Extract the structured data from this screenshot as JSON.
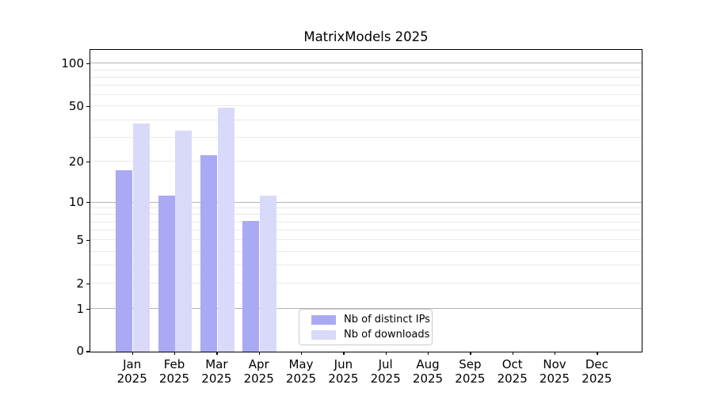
{
  "chart_data": {
    "type": "bar",
    "title": "MatrixModels 2025",
    "categories": [
      "Jan",
      "Feb",
      "Mar",
      "Apr",
      "May",
      "Jun",
      "Jul",
      "Aug",
      "Sep",
      "Oct",
      "Nov",
      "Dec"
    ],
    "x_tick_year": "2025",
    "series": [
      {
        "name": "Nb of distinct IPs",
        "color": "#a9a9f4",
        "values": [
          17,
          11,
          22,
          7,
          0,
          0,
          0,
          0,
          0,
          0,
          0,
          0
        ]
      },
      {
        "name": "Nb of downloads",
        "color": "#d9d9f9",
        "values": [
          37,
          33,
          48,
          11,
          0,
          0,
          0,
          0,
          0,
          0,
          0,
          0
        ]
      }
    ],
    "y_axis": {
      "scale": "log1p",
      "labeled_ticks": [
        0,
        1,
        2,
        5,
        10,
        20,
        50,
        100
      ],
      "gridline_values": [
        1,
        2,
        3,
        4,
        5,
        6,
        7,
        8,
        9,
        10,
        20,
        30,
        40,
        50,
        60,
        70,
        80,
        90,
        100
      ],
      "emphasized_gridlines": [
        1,
        10,
        100
      ],
      "gridline_color": "#e9e9e9",
      "emphasized_gridline_color": "#b4b4b4"
    },
    "legend": {
      "entries": [
        "Nb of distinct IPs",
        "Nb of downloads"
      ]
    },
    "grid": "on",
    "legend_position": "bottom-center"
  }
}
